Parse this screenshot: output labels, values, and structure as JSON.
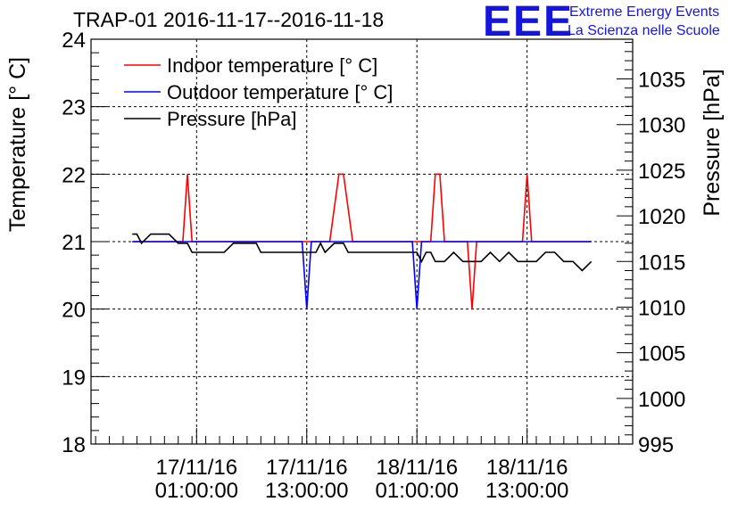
{
  "chart_data": {
    "type": "line",
    "title": "TRAP-01 2016-11-17--2016-11-18",
    "ylabel_left": "Temperature [° C]",
    "ylabel_right": "Pressure [hPa]",
    "ylim_left": [
      18,
      24
    ],
    "ylim_right": [
      995,
      1039.35
    ],
    "xlim_hours": [
      -10.5,
      48.5
    ],
    "yticks_left": [
      18,
      19,
      20,
      21,
      22,
      23,
      24
    ],
    "yticks_right": [
      995,
      1000,
      1005,
      1010,
      1015,
      1020,
      1025,
      1030,
      1035
    ],
    "xticks": [
      {
        "hour": 1,
        "date": "17/11/16",
        "time": "01:00:00"
      },
      {
        "hour": 13,
        "date": "17/11/16",
        "time": "13:00:00"
      },
      {
        "hour": 25,
        "date": "18/11/16",
        "time": "01:00:00"
      },
      {
        "hour": 37,
        "date": "18/11/16",
        "time": "13:00:00"
      }
    ],
    "legend": [
      {
        "label": "Indoor temperature [° C]",
        "color": "#ff0000"
      },
      {
        "label": "Outdoor temperature [° C]",
        "color": "#0000ff"
      },
      {
        "label": "Pressure [hPa]",
        "color": "#000000"
      }
    ],
    "series": [
      {
        "name": "Indoor temperature [° C]",
        "axis": "left",
        "color": "#ff0000",
        "x": [
          -6,
          -0.5,
          0,
          0.5,
          13.5,
          15.5,
          16.5,
          17,
          18,
          26.5,
          27,
          27.5,
          28,
          30.5,
          31,
          31.5,
          36.5,
          37,
          37.5,
          44
        ],
        "y": [
          21,
          21,
          22,
          21,
          21,
          21,
          22,
          22,
          21,
          21,
          22,
          22,
          21,
          21,
          20,
          21,
          21,
          22,
          21,
          21
        ]
      },
      {
        "name": "Outdoor temperature [° C]",
        "axis": "left",
        "color": "#0000ff",
        "x": [
          -6,
          12.5,
          13,
          13.5,
          24.5,
          25,
          25.5,
          44
        ],
        "y": [
          21,
          21,
          20,
          21,
          21,
          20,
          21,
          21
        ]
      },
      {
        "name": "Pressure [hPa]",
        "axis": "right",
        "color": "#000000",
        "x": [
          -6,
          -5.5,
          -5,
          -4,
          -3,
          -2,
          -1,
          0,
          0.5,
          1,
          1.5,
          2,
          2.5,
          3,
          4,
          5,
          6,
          6.5,
          7,
          7.5,
          8,
          9,
          10,
          11,
          12,
          13,
          14,
          14.5,
          15,
          16,
          17,
          17.5,
          18,
          20,
          22,
          24,
          25,
          25.5,
          26,
          26.5,
          27,
          28,
          29,
          30,
          31,
          32,
          33,
          34,
          35,
          36,
          37,
          38,
          39,
          40,
          41,
          42,
          43,
          44
        ],
        "y": [
          1018,
          1018,
          1017,
          1018,
          1018,
          1018,
          1017,
          1017,
          1016,
          1016,
          1016,
          1016,
          1016,
          1016,
          1016,
          1017,
          1017,
          1017,
          1017,
          1017,
          1016,
          1016,
          1016,
          1016,
          1016,
          1016,
          1016,
          1017,
          1016,
          1017,
          1017,
          1016,
          1016,
          1016,
          1016,
          1016,
          1016,
          1015,
          1016,
          1016,
          1015,
          1015,
          1016,
          1015,
          1015,
          1015,
          1016,
          1015,
          1016,
          1015,
          1015,
          1015,
          1016,
          1016,
          1015,
          1015,
          1014,
          1015
        ]
      }
    ]
  },
  "logo": {
    "mark": "EEE",
    "line1": "Extreme Energy Events",
    "line2": "La Scienza nelle Scuole"
  }
}
